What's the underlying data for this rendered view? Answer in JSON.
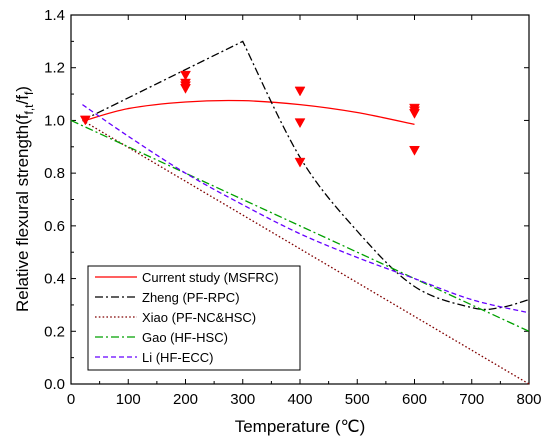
{
  "chart_data": {
    "type": "line",
    "xlabel": "Temperature (℃)",
    "ylabel": "Relative flexural strength(f",
    "ylabel_sub1": "f,t",
    "ylabel_mid": "/f",
    "ylabel_sub2": "f",
    "ylabel_end": ")",
    "xlim": [
      0,
      800
    ],
    "ylim": [
      0.0,
      1.4
    ],
    "x_ticks": [
      0,
      100,
      200,
      300,
      400,
      500,
      600,
      700,
      800
    ],
    "y_ticks": [
      0.0,
      0.2,
      0.4,
      0.6,
      0.8,
      1.0,
      1.2,
      1.4
    ],
    "x_tick_labels": [
      "0",
      "100",
      "200",
      "300",
      "400",
      "500",
      "600",
      "700",
      "800"
    ],
    "y_tick_labels": [
      "0.0",
      "0.2",
      "0.4",
      "0.6",
      "0.8",
      "1.0",
      "1.2",
      "1.4"
    ],
    "legend_position": "bottom-left",
    "series": [
      {
        "name": "Current study (MSFRC)",
        "color": "#ff0000",
        "style": "solid",
        "x": [
          25,
          100,
          200,
          300,
          400,
          500,
          600
        ],
        "y": [
          1.0,
          1.045,
          1.07,
          1.075,
          1.06,
          1.03,
          0.985
        ]
      },
      {
        "name": "Zheng (PF-RPC)",
        "color": "#000000",
        "style": "dashdot",
        "x": [
          20,
          300,
          400,
          500,
          600,
          700,
          750,
          800
        ],
        "y": [
          1.0,
          1.3,
          0.86,
          0.58,
          0.37,
          0.29,
          0.29,
          0.32
        ]
      },
      {
        "name": "Xiao (PF-NC&HSC)",
        "color": "#800000",
        "style": "dotted",
        "x": [
          20,
          800
        ],
        "y": [
          1.0,
          0.0
        ]
      },
      {
        "name": "Gao (HF-HSC)",
        "color": "#00a000",
        "style": "dashdot",
        "x": [
          0,
          800
        ],
        "y": [
          1.0,
          0.2
        ]
      },
      {
        "name": "Li (HF-ECC)",
        "color": "#6600ff",
        "style": "dashed",
        "x": [
          20,
          100,
          200,
          300,
          400,
          500,
          600,
          700,
          800
        ],
        "y": [
          1.06,
          0.94,
          0.8,
          0.68,
          0.57,
          0.48,
          0.4,
          0.32,
          0.27
        ]
      }
    ],
    "markers": {
      "color": "#ff0000",
      "shape": "down-triangle",
      "points": [
        {
          "x": 25,
          "y": 1.0
        },
        {
          "x": 200,
          "y": 1.17
        },
        {
          "x": 200,
          "y": 1.14
        },
        {
          "x": 200,
          "y": 1.13
        },
        {
          "x": 200,
          "y": 1.12
        },
        {
          "x": 400,
          "y": 1.11
        },
        {
          "x": 400,
          "y": 0.99
        },
        {
          "x": 400,
          "y": 0.84
        },
        {
          "x": 600,
          "y": 1.045
        },
        {
          "x": 600,
          "y": 1.035
        },
        {
          "x": 600,
          "y": 1.025
        },
        {
          "x": 600,
          "y": 0.885
        }
      ]
    }
  }
}
